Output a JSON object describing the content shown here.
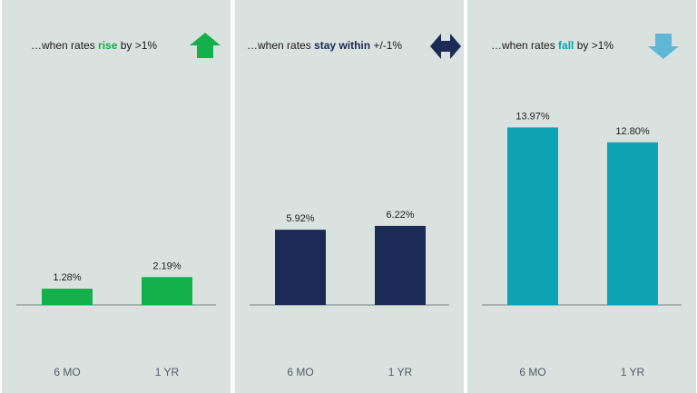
{
  "panels": [
    {
      "title_pre": "…when rates ",
      "title_highlight": "rise",
      "title_post": " by >1%",
      "accent": "#14b04a",
      "icon": "up-arrow-icon"
    },
    {
      "title_pre": "…when rates ",
      "title_highlight": "stay within",
      "title_post": " +/-1%",
      "accent": "#1b2b55",
      "icon": "left-right-arrow-icon"
    },
    {
      "title_pre": "…when rates ",
      "title_highlight": "fall",
      "title_post": " by >1%",
      "accent": "#0ea3b2",
      "icon": "down-arrow-icon"
    }
  ],
  "chart_data": [
    {
      "type": "bar",
      "title": "…when rates rise by >1%",
      "categories": [
        "6 MO",
        "1 YR"
      ],
      "values": [
        1.28,
        2.19
      ],
      "labels": [
        "1.28%",
        "2.19%"
      ],
      "color": "#14b04a",
      "ylim": [
        0,
        14
      ]
    },
    {
      "type": "bar",
      "title": "…when rates stay within +/-1%",
      "categories": [
        "6 MO",
        "1 YR"
      ],
      "values": [
        5.92,
        6.22
      ],
      "labels": [
        "5.92%",
        "6.22%"
      ],
      "color": "#1b2b55",
      "ylim": [
        0,
        14
      ]
    },
    {
      "type": "bar",
      "title": "…when rates fall by >1%",
      "categories": [
        "6 MO",
        "1 YR"
      ],
      "values": [
        13.97,
        12.8
      ],
      "labels": [
        "13.97%",
        "12.80%"
      ],
      "color": "#0ea3b2",
      "ylim": [
        0,
        14
      ]
    }
  ]
}
